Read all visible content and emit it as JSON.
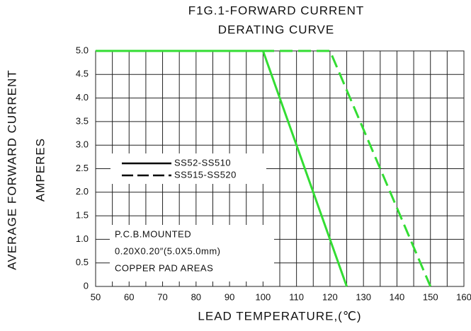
{
  "chart_data": {
    "type": "line",
    "title": [
      "F1G.1-FORWARD CURRENT",
      "DERATING CURVE"
    ],
    "y_label": [
      "AVERAGE FORWARD CURRENT",
      "AMPERES"
    ],
    "x_label": "LEAD TEMPERATURE,(℃)",
    "annotation": [
      "P.C.B.MOUNTED",
      "0.20X0.20″(5.0X5.0mm)",
      "COPPER PAD AREAS"
    ],
    "xlim": [
      50,
      160
    ],
    "xticks": [
      50,
      60,
      70,
      80,
      90,
      100,
      110,
      120,
      130,
      140,
      150,
      160
    ],
    "xminor": [
      55,
      65,
      75,
      85,
      95,
      105,
      115,
      125,
      135,
      145,
      155
    ],
    "ylim": [
      0,
      5
    ],
    "yticks": [
      0,
      0.5,
      {
        "value": 1,
        "label": "1.0"
      },
      1.5,
      {
        "value": 2,
        "label": "2.0"
      },
      2.5,
      {
        "value": 3,
        "label": "3.0"
      },
      3.5,
      {
        "value": 4,
        "label": "4.0"
      },
      4.5,
      {
        "value": 5,
        "label": "5.0"
      }
    ],
    "grid": true,
    "legend_color": "#000000",
    "series": [
      {
        "name": "SS52-SS510",
        "color": "#33dd33",
        "dash": false,
        "x": [
          50,
          100,
          125
        ],
        "values": [
          5,
          5,
          0
        ]
      },
      {
        "name": "SS515-SS520",
        "color": "#33dd33",
        "dash": true,
        "x": [
          50,
          120,
          150
        ],
        "values": [
          5,
          5,
          0
        ]
      }
    ]
  }
}
